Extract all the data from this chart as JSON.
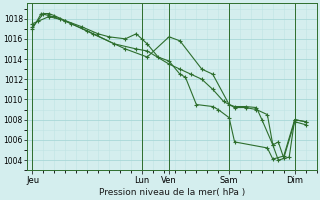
{
  "background_color": "#d4eeee",
  "grid_color_major": "#a8d8d8",
  "grid_color_minor": "#c0e4e4",
  "line_color": "#2d6e2d",
  "marker_color": "#2d6e2d",
  "xlabel": "Pression niveau de la mer( hPa )",
  "ylim": [
    1003.0,
    1019.5
  ],
  "yticks": [
    1004,
    1006,
    1008,
    1010,
    1012,
    1014,
    1016,
    1018
  ],
  "xtick_labels": [
    "Jeu",
    "Lun",
    "Ven",
    "Sam",
    "Dim"
  ],
  "xtick_positions": [
    0,
    10,
    12.5,
    18,
    24
  ],
  "xlim": [
    -0.5,
    26
  ],
  "vlines": [
    0,
    10,
    12.5,
    18,
    24
  ],
  "series": [
    {
      "x": [
        0,
        0.5,
        1.0,
        1.5,
        2.0,
        3.0,
        4.5,
        6.0,
        7.0,
        8.5,
        9.5,
        10.0,
        10.5,
        11.5,
        12.5,
        13.5,
        14.0,
        15.0,
        16.5,
        17.0,
        18.0,
        18.5,
        21.5,
        22.0,
        23.0,
        24.0,
        25.0
      ],
      "y": [
        1017.2,
        1017.8,
        1018.5,
        1018.5,
        1018.3,
        1017.8,
        1017.2,
        1016.5,
        1016.2,
        1016.0,
        1016.5,
        1016.0,
        1015.5,
        1014.2,
        1013.8,
        1012.5,
        1012.2,
        1009.5,
        1009.3,
        1009.0,
        1008.2,
        1005.8,
        1005.2,
        1004.1,
        1004.4,
        1008.0,
        1007.8
      ]
    },
    {
      "x": [
        0,
        0.8,
        1.5,
        2.5,
        3.5,
        5.0,
        7.5,
        9.5,
        10.5,
        12.5,
        13.5,
        14.5,
        15.5,
        16.5,
        17.5,
        18.5,
        19.5,
        20.5,
        21.5,
        22.0,
        22.5,
        23.0,
        24.0,
        25.0
      ],
      "y": [
        1017.0,
        1018.5,
        1018.3,
        1018.0,
        1017.5,
        1016.8,
        1015.5,
        1015.0,
        1014.8,
        1013.5,
        1013.0,
        1012.5,
        1012.0,
        1011.0,
        1009.8,
        1009.2,
        1009.2,
        1009.0,
        1008.5,
        1005.5,
        1005.8,
        1004.2,
        1007.8,
        1007.5
      ]
    },
    {
      "x": [
        0,
        1.5,
        3.0,
        5.5,
        8.5,
        10.5,
        12.5,
        13.5,
        15.5,
        16.5,
        18.0,
        18.5,
        19.5,
        20.5,
        21.0,
        22.0,
        22.5,
        23.5,
        24.0,
        25.0
      ],
      "y": [
        1017.5,
        1018.2,
        1017.8,
        1016.5,
        1015.0,
        1014.2,
        1016.2,
        1015.8,
        1013.0,
        1012.5,
        1009.5,
        1009.3,
        1009.3,
        1009.2,
        1008.0,
        1005.5,
        1004.0,
        1004.3,
        1008.0,
        1007.8
      ]
    }
  ]
}
